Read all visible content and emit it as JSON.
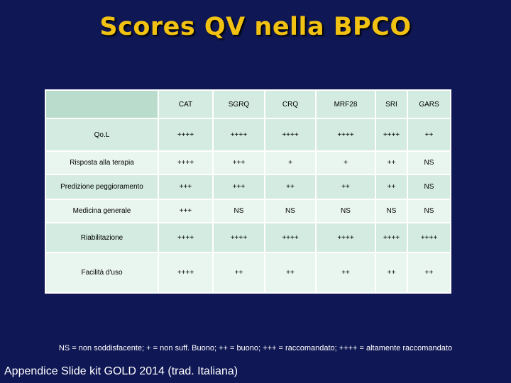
{
  "title": "Scores QV nella BPCO",
  "table": {
    "headers": [
      "",
      "CAT",
      "SGRQ",
      "CRQ",
      "MRF28",
      "SRI",
      "GARS"
    ],
    "rows": [
      {
        "label": "Qo.L",
        "values": [
          "++++",
          "++++",
          "++++",
          "++++",
          "++++",
          "++"
        ]
      },
      {
        "label": "Risposta alla terapia",
        "values": [
          "++++",
          "+++",
          "+",
          "+",
          "++",
          "NS"
        ]
      },
      {
        "label": "Predizione peggioramento",
        "values": [
          "+++",
          "+++",
          "++",
          "++",
          "++",
          "NS"
        ]
      },
      {
        "label": "Medicina generale",
        "values": [
          "+++",
          "NS",
          "NS",
          "NS",
          "NS",
          "NS"
        ]
      },
      {
        "label": "Riabilitazione",
        "values": [
          "++++",
          "++++",
          "++++",
          "++++",
          "++++",
          "++++"
        ]
      },
      {
        "label": "Facilità d'uso",
        "values": [
          "++++",
          "++",
          "++",
          "++",
          "++",
          "++"
        ]
      }
    ]
  },
  "legend": "NS = non soddisfacente; + = non suff. Buono; ++ = buono; +++ = raccomandato; ++++ = altamente raccomandato",
  "footer": "Appendice Slide kit GOLD 2014 (trad. Italiana)",
  "colors": {
    "background": "#0f1754",
    "title": "#f2c212",
    "row_dark": "#d3ebe0",
    "row_light": "#e9f5ef"
  }
}
